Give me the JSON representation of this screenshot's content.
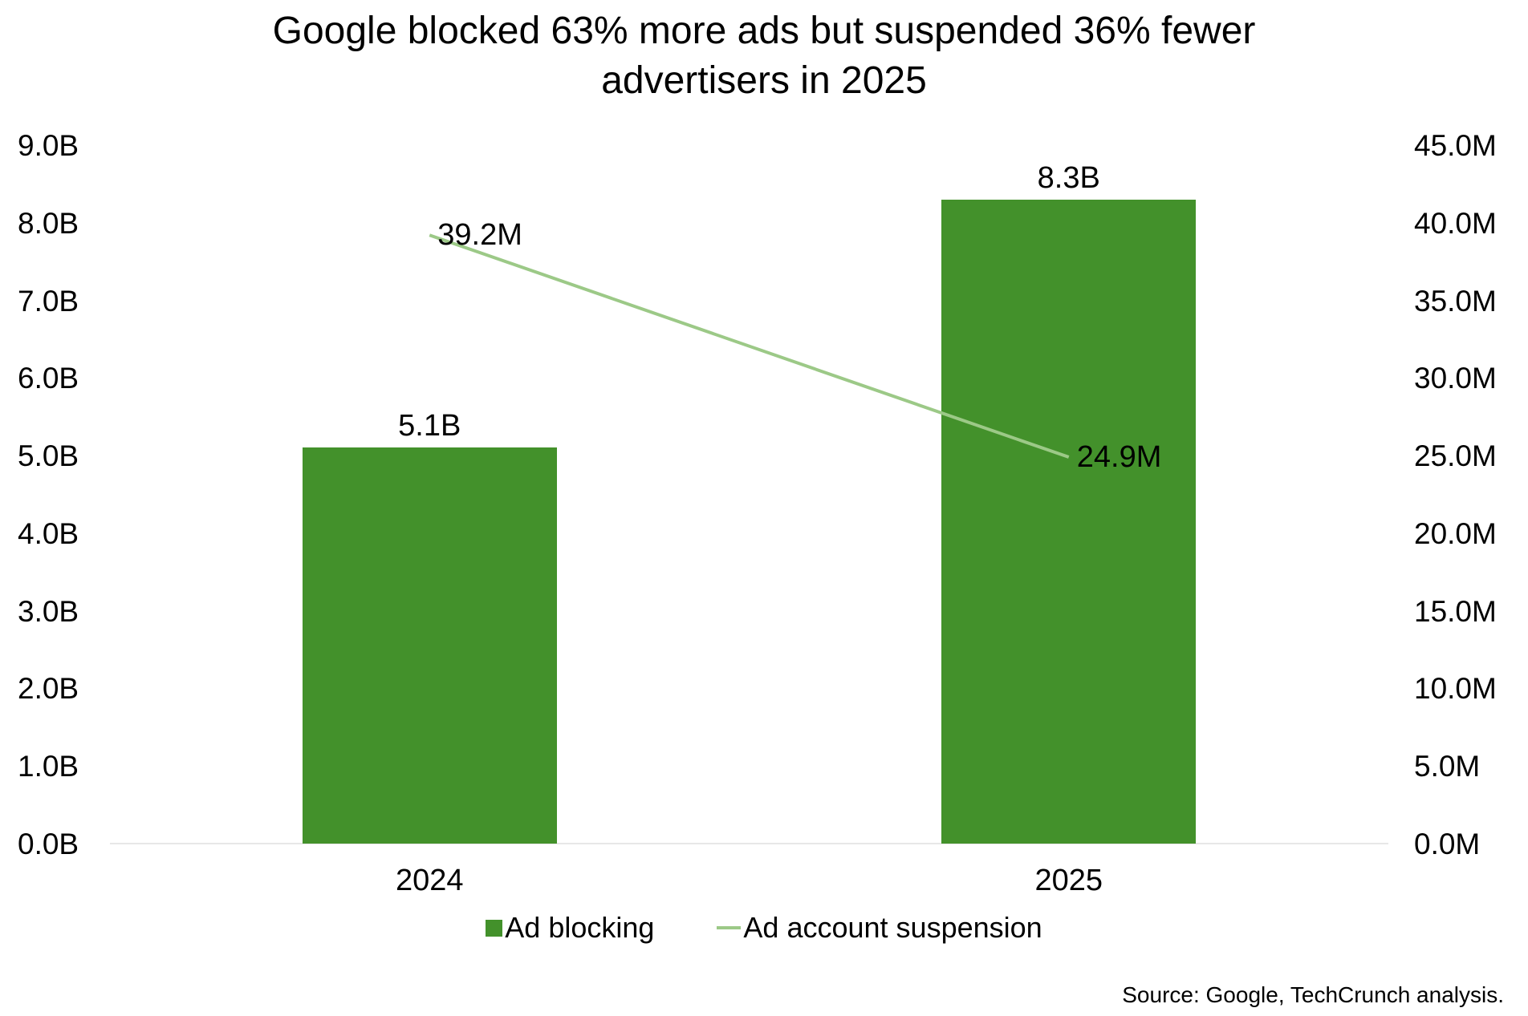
{
  "title_lines": [
    "Google blocked 63% more ads but suspended 36% fewer",
    "advertisers in 2025"
  ],
  "source": "Source: Google, TechCrunch analysis.",
  "legend": {
    "bar_label": "Ad blocking",
    "line_label": "Ad account suspension"
  },
  "colors": {
    "bar": "#43912B",
    "line": "#9CC987",
    "axis_line": "#e7e7e7",
    "text": "#000000"
  },
  "chart_data": {
    "type": "bar",
    "combo_line": true,
    "title": "Google blocked 63% more ads but suspended 36% fewer advertisers in 2025",
    "categories": [
      "2024",
      "2025"
    ],
    "series": [
      {
        "name": "Ad blocking",
        "kind": "bar",
        "axis": "left",
        "values": [
          5.1,
          8.3
        ],
        "labels": [
          "5.1B",
          "8.3B"
        ],
        "color": "#43912B"
      },
      {
        "name": "Ad account suspension",
        "kind": "line",
        "axis": "right",
        "values": [
          39.2,
          24.9
        ],
        "labels": [
          "39.2M",
          "24.9M"
        ],
        "color": "#9CC987"
      }
    ],
    "left_axis": {
      "min": 0,
      "max": 9,
      "tick_values": [
        0,
        1,
        2,
        3,
        4,
        5,
        6,
        7,
        8,
        9
      ],
      "tick_labels": [
        "0.0B",
        "1.0B",
        "2.0B",
        "3.0B",
        "4.0B",
        "5.0B",
        "6.0B",
        "7.0B",
        "8.0B",
        "9.0B"
      ]
    },
    "right_axis": {
      "min": 0,
      "max": 45,
      "tick_values": [
        0,
        5,
        10,
        15,
        20,
        25,
        30,
        35,
        40,
        45
      ],
      "tick_labels": [
        "0.0M",
        "5.0M",
        "10.0M",
        "15.0M",
        "20.0M",
        "25.0M",
        "30.0M",
        "35.0M",
        "40.0M",
        "45.0M"
      ]
    },
    "grid": false,
    "legend_position": "bottom",
    "source": "Source: Google, TechCrunch analysis."
  }
}
